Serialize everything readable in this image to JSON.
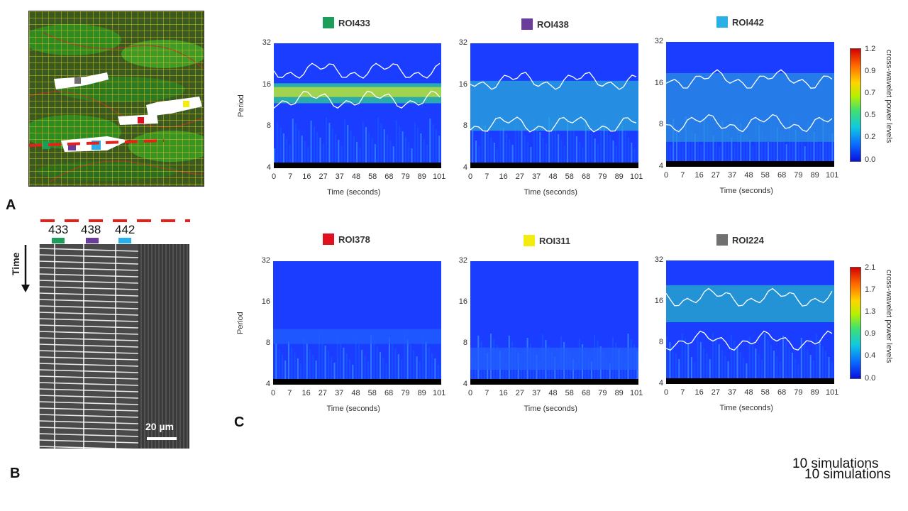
{
  "panels": {
    "a": "A",
    "b": "B",
    "c": "C"
  },
  "kymograph": {
    "roi_labels": [
      "433",
      "438",
      "442"
    ],
    "time_label": "Time",
    "scale_bar": "20 µm"
  },
  "colors": {
    "roi433": "#1a9e5a",
    "roi438": "#6a3c9c",
    "roi442": "#29b0e8",
    "roi378": "#e01020",
    "roi311": "#f2ec10",
    "roi224": "#707070",
    "plot_background": "#1a3dff",
    "dashed_line": "#e8201a"
  },
  "plots": [
    {
      "title": "ROI433",
      "swatch": "#1a9e5a"
    },
    {
      "title": "ROI438",
      "swatch": "#6a3c9c"
    },
    {
      "title": "ROI442",
      "swatch": "#29b0e8"
    },
    {
      "title": "ROI378",
      "swatch": "#e01020"
    },
    {
      "title": "ROI311",
      "swatch": "#f2ec10"
    },
    {
      "title": "ROI224",
      "swatch": "#707070"
    }
  ],
  "axes": {
    "ylabel": "Period",
    "xlabel": "Time (seconds)",
    "yticks": [
      "32",
      "16",
      "8",
      "4"
    ],
    "xticks": [
      "0",
      "7",
      "16",
      "27",
      "37",
      "48",
      "58",
      "68",
      "79",
      "89",
      "101"
    ]
  },
  "colorbars": [
    {
      "label": "cross-wavelet power levels",
      "ticks": [
        "1.2",
        "0.9",
        "0.7",
        "0.5",
        "0.2",
        "0.0"
      ]
    },
    {
      "label": "cross-wavelet power levels",
      "ticks": [
        "2.1",
        "1.7",
        "1.3",
        "0.9",
        "0.4",
        "0.0"
      ]
    }
  ],
  "footnotes": [
    "10 simulations",
    "10 simulations"
  ]
}
